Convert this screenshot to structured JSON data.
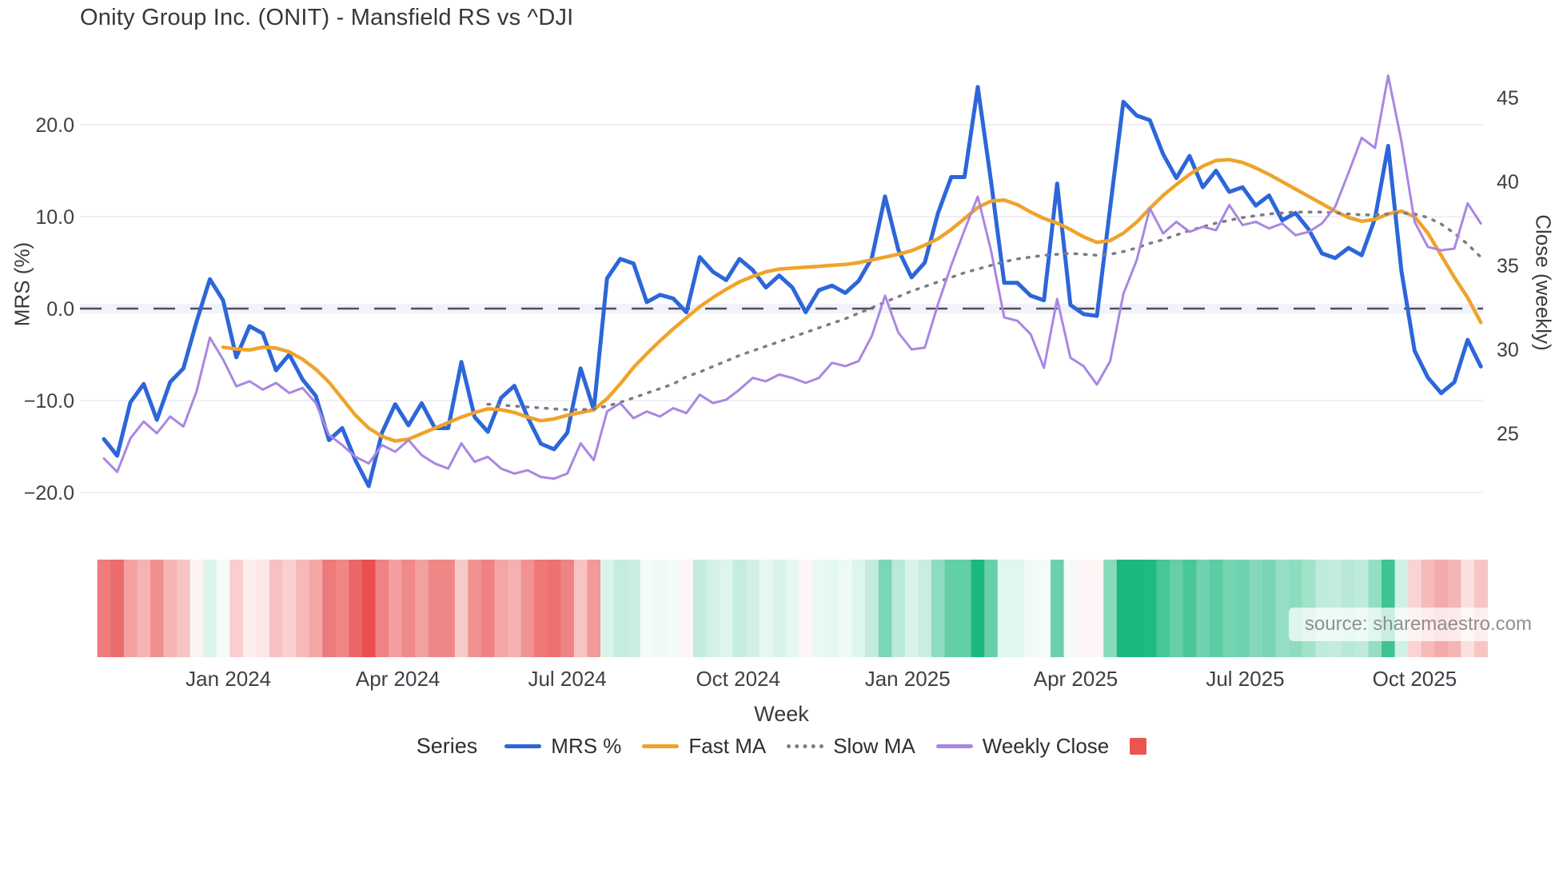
{
  "title": "Onity Group Inc. (ONIT) - Mansfield RS vs ^DJI",
  "source": "source: sharemaestro.com",
  "axes": {
    "left_label": "MRS (%)",
    "right_label": "Close (weekly)",
    "x_label": "Week"
  },
  "legend": {
    "title": "Series",
    "items": [
      {
        "label": "MRS %",
        "style": "solid",
        "color": "#2c66d9"
      },
      {
        "label": "Fast MA",
        "style": "solid",
        "color": "#efa32b"
      },
      {
        "label": "Slow MA",
        "style": "dotted",
        "color": "#7c7c85"
      },
      {
        "label": "Weekly Close",
        "style": "solid",
        "color": "#a987e1"
      },
      {
        "label": "",
        "style": "square",
        "color": "#e9564f"
      }
    ]
  },
  "chart_data": {
    "type": "line",
    "title": "Onity Group Inc. (ONIT) - Mansfield RS vs ^DJI",
    "xlabel": "Week",
    "ylabel_left": "MRS (%)",
    "ylabel_right": "Close (weekly)",
    "ylim_left": [
      -23,
      26
    ],
    "ylim_right": [
      24,
      46.6
    ],
    "grid": "horizontal-left-ticks-only",
    "zero_line": true,
    "left_ticks": {
      "labels": [
        "20.0",
        "10.0",
        "0.0",
        "−10.0",
        "−20.0"
      ],
      "values": [
        20,
        10,
        0,
        -10,
        -20
      ]
    },
    "right_ticks": {
      "labels": [
        "45",
        "40",
        "35",
        "30",
        "25"
      ],
      "values": [
        45,
        40,
        35,
        30,
        25
      ]
    },
    "x_ticks": {
      "labels": [
        "Jan 2024",
        "Apr 2024",
        "Jul 2024",
        "Oct 2024",
        "Jan 2025",
        "Apr 2025",
        "Jul 2025",
        "Oct 2025"
      ],
      "week_positions": [
        9.4,
        22.2,
        35.0,
        47.9,
        60.7,
        73.4,
        86.2,
        99.0
      ]
    },
    "weeks_total": 105,
    "series": [
      {
        "name": "MRS %",
        "axis": "left",
        "color": "#2c66d9",
        "width": 5,
        "dash": "solid",
        "values": [
          -14.2,
          -16.0,
          -10.2,
          -8.2,
          -12.1,
          -8.0,
          -6.5,
          -1.4,
          3.2,
          0.9,
          -5.3,
          -1.9,
          -2.7,
          -6.7,
          -5.0,
          -7.7,
          -9.5,
          -14.3,
          -13.0,
          -16.5,
          -19.3,
          -13.5,
          -10.4,
          -12.7,
          -10.3,
          -13.0,
          -13.0,
          -5.8,
          -11.8,
          -13.4,
          -9.7,
          -8.4,
          -11.8,
          -14.7,
          -15.3,
          -13.5,
          -6.5,
          -11.0,
          3.3,
          5.4,
          4.9,
          0.7,
          1.5,
          1.1,
          -0.4,
          5.6,
          4.0,
          3.1,
          5.4,
          4.2,
          2.3,
          3.6,
          2.3,
          -0.4,
          2.0,
          2.5,
          1.7,
          3.0,
          5.5,
          12.2,
          6.4,
          3.4,
          5.0,
          10.4,
          14.3,
          14.3,
          24.1,
          13.9,
          2.8,
          2.8,
          1.4,
          0.9,
          13.6,
          0.4,
          -0.6,
          -0.8,
          11.0,
          22.5,
          21.0,
          20.5,
          16.8,
          14.2,
          16.6,
          13.2,
          15.0,
          12.7,
          13.2,
          11.2,
          12.3,
          9.6,
          10.4,
          8.6,
          6.0,
          5.5,
          6.6,
          5.8,
          9.8,
          17.7,
          4.1,
          -4.6,
          -7.5,
          -9.2,
          -8.0,
          -3.4,
          -6.3
        ]
      },
      {
        "name": "Fast MA",
        "axis": "left",
        "color": "#efa32b",
        "width": 4.5,
        "dash": "solid",
        "values": [
          null,
          null,
          null,
          null,
          null,
          null,
          null,
          null,
          null,
          -4.2,
          -4.4,
          -4.5,
          -4.2,
          -4.3,
          -4.7,
          -5.5,
          -6.6,
          -8.0,
          -9.8,
          -11.6,
          -13.0,
          -13.9,
          -14.4,
          -14.2,
          -13.6,
          -13.0,
          -12.4,
          -11.8,
          -11.3,
          -10.9,
          -11.0,
          -11.3,
          -11.8,
          -12.2,
          -12.0,
          -11.6,
          -11.3,
          -11.0,
          -9.8,
          -8.2,
          -6.4,
          -4.9,
          -3.5,
          -2.2,
          -1.0,
          0.2,
          1.2,
          2.1,
          2.9,
          3.5,
          4.0,
          4.3,
          4.4,
          4.5,
          4.6,
          4.7,
          4.8,
          5.0,
          5.3,
          5.6,
          5.9,
          6.3,
          6.9,
          7.6,
          8.6,
          9.8,
          11.0,
          11.7,
          11.8,
          11.3,
          10.5,
          9.8,
          9.3,
          8.6,
          7.8,
          7.2,
          7.4,
          8.2,
          9.4,
          10.9,
          12.3,
          13.5,
          14.6,
          15.5,
          16.1,
          16.2,
          15.9,
          15.3,
          14.6,
          13.8,
          13.0,
          12.2,
          11.4,
          10.6,
          9.9,
          9.5,
          9.7,
          10.3,
          10.6,
          10.0,
          8.2,
          5.8,
          3.4,
          1.2,
          -1.5
        ]
      },
      {
        "name": "Slow MA",
        "axis": "left",
        "color": "#7c7c85",
        "width": 3.5,
        "dash": "dotted",
        "values": [
          null,
          null,
          null,
          null,
          null,
          null,
          null,
          null,
          null,
          null,
          null,
          null,
          null,
          null,
          null,
          null,
          null,
          null,
          null,
          null,
          null,
          null,
          null,
          null,
          null,
          null,
          null,
          null,
          null,
          -10.4,
          -10.5,
          -10.6,
          -10.7,
          -10.8,
          -10.9,
          -11.0,
          -11.0,
          -10.9,
          -10.6,
          -10.2,
          -9.7,
          -9.2,
          -8.7,
          -8.2,
          -7.4,
          -6.9,
          -6.3,
          -5.7,
          -5.1,
          -4.6,
          -4.1,
          -3.6,
          -3.1,
          -2.6,
          -2.1,
          -1.6,
          -1.1,
          -0.5,
          0.1,
          0.7,
          1.3,
          1.9,
          2.4,
          2.9,
          3.4,
          3.9,
          4.3,
          4.7,
          5.1,
          5.4,
          5.6,
          5.8,
          5.9,
          6.0,
          5.9,
          5.8,
          5.9,
          6.2,
          6.6,
          7.1,
          7.5,
          8.0,
          8.5,
          8.9,
          9.3,
          9.6,
          9.9,
          10.1,
          10.3,
          10.4,
          10.5,
          10.5,
          10.5,
          10.4,
          10.3,
          10.2,
          10.2,
          10.3,
          10.4,
          10.3,
          9.9,
          9.2,
          8.2,
          7.0,
          5.6
        ]
      },
      {
        "name": "Weekly Close",
        "axis": "right",
        "color": "#a987e1",
        "width": 3,
        "dash": "solid",
        "values": [
          23.5,
          22.7,
          24.7,
          25.7,
          25.0,
          26.0,
          25.4,
          27.5,
          30.7,
          29.4,
          27.8,
          28.1,
          27.6,
          28.0,
          27.4,
          27.7,
          26.8,
          24.9,
          24.3,
          23.6,
          23.2,
          24.3,
          23.9,
          24.6,
          23.7,
          23.2,
          22.9,
          24.4,
          23.3,
          23.6,
          22.9,
          22.6,
          22.8,
          22.4,
          22.3,
          22.6,
          24.4,
          23.4,
          26.3,
          26.8,
          25.9,
          26.3,
          26.0,
          26.5,
          26.2,
          27.3,
          26.8,
          27.0,
          27.6,
          28.3,
          28.1,
          28.5,
          28.3,
          28.0,
          28.3,
          29.2,
          29.0,
          29.3,
          30.8,
          33.2,
          31.0,
          30.0,
          30.1,
          32.7,
          35.0,
          37.1,
          39.1,
          35.9,
          31.9,
          31.7,
          30.9,
          28.9,
          33.0,
          29.5,
          29.0,
          27.9,
          29.3,
          33.3,
          35.3,
          38.4,
          36.9,
          37.6,
          37.0,
          37.3,
          37.1,
          38.6,
          37.4,
          37.6,
          37.2,
          37.5,
          36.8,
          37.0,
          37.5,
          38.5,
          40.5,
          42.6,
          42.0,
          46.3,
          42.4,
          37.6,
          36.1,
          35.9,
          36.0,
          38.7,
          37.5
        ]
      }
    ],
    "heatmap_strip": {
      "source_series": "MRS %",
      "rule": "red when negative, green when positive, intensity proportional to |value|",
      "neg_color": "#e94f4f",
      "pos_color": "#1ab87e"
    }
  }
}
